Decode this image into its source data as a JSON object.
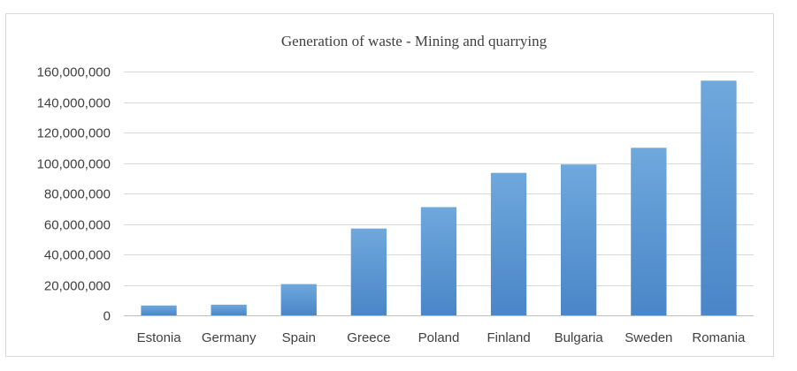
{
  "chart_data": {
    "type": "bar",
    "title": "Generation of waste - Mining and quarrying",
    "xlabel": "",
    "ylabel": "",
    "categories": [
      "Estonia",
      "Germany",
      "Spain",
      "Greece",
      "Poland",
      "Finland",
      "Bulgaria",
      "Sweden",
      "Romania"
    ],
    "values": [
      6500000,
      7000000,
      20500000,
      57000000,
      71000000,
      93500000,
      99000000,
      110000000,
      154000000
    ],
    "ylim": [
      0,
      160000000
    ],
    "yticks": [
      0,
      20000000,
      40000000,
      60000000,
      80000000,
      100000000,
      120000000,
      140000000,
      160000000
    ],
    "ytick_labels": [
      "0",
      "20,000,000",
      "40,000,000",
      "60,000,000",
      "80,000,000",
      "100,000,000",
      "120,000,000",
      "140,000,000",
      "160,000,000"
    ],
    "grid": true,
    "legend": "none",
    "bar_color_top": "#6fa8dc",
    "bar_color_bottom": "#4a86c8"
  }
}
